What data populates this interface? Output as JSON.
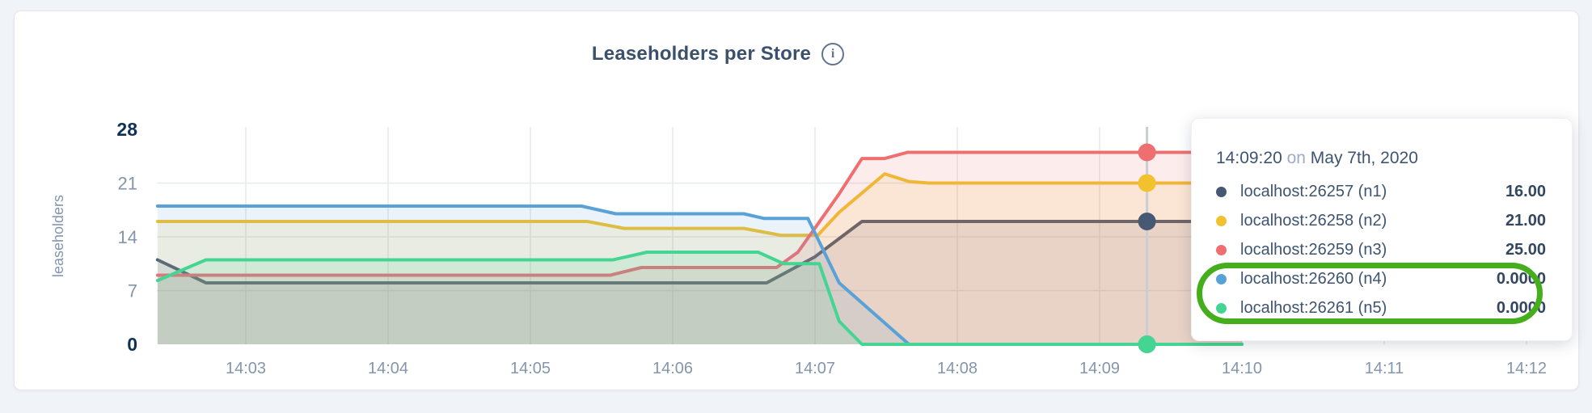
{
  "header": {
    "title": "Leaseholders per Store",
    "info_icon": "i"
  },
  "y_axis": {
    "label": "leaseholders",
    "ticks": [
      0,
      7,
      14,
      21,
      28
    ]
  },
  "x_axis": {
    "ticks": [
      "14:03",
      "14:04",
      "14:05",
      "14:06",
      "14:07",
      "14:08",
      "14:09",
      "14:10",
      "14:11",
      "14:12"
    ]
  },
  "tooltip": {
    "time": "14:09:20",
    "separator": "on",
    "date": "May 7th, 2020",
    "rows": [
      {
        "name": "localhost:26257 (n1)",
        "value": "16.00",
        "color": "#475872",
        "highlighted": false
      },
      {
        "name": "localhost:26258 (n2)",
        "value": "21.00",
        "color": "#f2c12e",
        "highlighted": false
      },
      {
        "name": "localhost:26259 (n3)",
        "value": "25.00",
        "color": "#ef6f70",
        "highlighted": false
      },
      {
        "name": "localhost:26260 (n4)",
        "value": "0.0000",
        "color": "#59a2d8",
        "highlighted": true
      },
      {
        "name": "localhost:26261 (n5)",
        "value": "0.0000",
        "color": "#45d592",
        "highlighted": true
      }
    ],
    "highlight_color": "#44ae1c"
  },
  "chart_data": {
    "type": "area",
    "title": "Leaseholders per Store",
    "ylabel": "leaseholders",
    "ylim": [
      0,
      28
    ],
    "y_ticks": [
      0,
      7,
      14,
      21,
      28
    ],
    "grid": true,
    "x_tick_labels": [
      "14:03",
      "14:04",
      "14:05",
      "14:06",
      "14:07",
      "14:08",
      "14:09",
      "14:10",
      "14:11",
      "14:12"
    ],
    "x_tick_minutes": [
      3,
      4,
      5,
      6,
      7,
      8,
      9,
      10,
      11,
      12
    ],
    "hover": {
      "time": "14:09:20",
      "date": "May 7th, 2020",
      "x_minutes": 9.333,
      "values": [
        16.0,
        21.0,
        25.0,
        0.0,
        0.0
      ]
    },
    "series": [
      {
        "name": "localhost:26257 (n1)",
        "color": "#475872",
        "points": [
          [
            2.38,
            11
          ],
          [
            2.72,
            8
          ],
          [
            6.66,
            8
          ],
          [
            7.0,
            11.4
          ],
          [
            7.33,
            16
          ],
          [
            10,
            16
          ]
        ]
      },
      {
        "name": "localhost:26258 (n2)",
        "color": "#f2c12e",
        "points": [
          [
            2.38,
            16
          ],
          [
            5.4,
            16
          ],
          [
            5.66,
            15.1
          ],
          [
            6.5,
            15.1
          ],
          [
            6.76,
            14.2
          ],
          [
            7.02,
            14.2
          ],
          [
            7.17,
            17.2
          ],
          [
            7.49,
            22.2
          ],
          [
            7.66,
            21.2
          ],
          [
            7.8,
            21
          ],
          [
            10,
            21
          ]
        ]
      },
      {
        "name": "localhost:26259 (n3)",
        "color": "#ef6f70",
        "points": [
          [
            2.38,
            9
          ],
          [
            5.56,
            9
          ],
          [
            5.78,
            10
          ],
          [
            6.73,
            10
          ],
          [
            6.88,
            12
          ],
          [
            7.17,
            19.6
          ],
          [
            7.33,
            24.2
          ],
          [
            7.49,
            24.2
          ],
          [
            7.65,
            25
          ],
          [
            10,
            25
          ]
        ]
      },
      {
        "name": "localhost:26260 (n4)",
        "color": "#59a2d8",
        "points": [
          [
            2.38,
            18
          ],
          [
            5.36,
            18
          ],
          [
            5.6,
            17
          ],
          [
            6.5,
            17
          ],
          [
            6.64,
            16.4
          ],
          [
            6.95,
            16.4
          ],
          [
            7.17,
            8
          ],
          [
            7.66,
            0
          ],
          [
            10,
            0
          ]
        ]
      },
      {
        "name": "localhost:26261 (n5)",
        "color": "#45d592",
        "points": [
          [
            2.38,
            8.3
          ],
          [
            2.72,
            11
          ],
          [
            5.58,
            11
          ],
          [
            5.82,
            12
          ],
          [
            6.6,
            12
          ],
          [
            6.78,
            10.5
          ],
          [
            7.03,
            10.5
          ],
          [
            7.17,
            3
          ],
          [
            7.33,
            0
          ],
          [
            10,
            0
          ]
        ]
      }
    ]
  }
}
